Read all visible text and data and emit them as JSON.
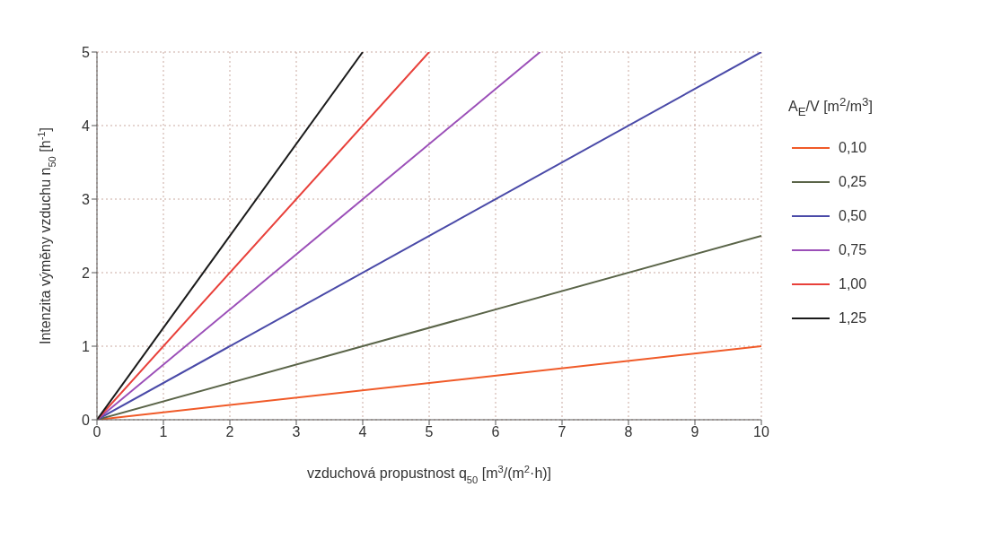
{
  "chart_data": {
    "type": "line",
    "xlabel": "vzduchová propustnost q$_{50}$ [m$^{3}$/(m$^{2}$·h)]",
    "ylabel": "Intenzita výměny vzduchu n$_{50}$ [h$^{-1}$]",
    "legend_title": "A$_{E}$/V [m$^{2}$/m$^{3}$]",
    "xlim": [
      0,
      10
    ],
    "xticks": [
      0,
      1,
      2,
      3,
      4,
      5,
      6,
      7,
      8,
      9,
      10
    ],
    "ylim": [
      0,
      5
    ],
    "yticks": [
      0,
      1,
      2,
      3,
      4,
      5
    ],
    "grid": true,
    "legend": "right",
    "marker": "none",
    "line_style": "solid",
    "series": [
      {
        "name": "0,10",
        "color": "#f05a28",
        "x": [
          0,
          10
        ],
        "values": [
          0,
          1
        ]
      },
      {
        "name": "0,25",
        "color": "#5a6448",
        "x": [
          0,
          10
        ],
        "values": [
          0,
          2.5
        ]
      },
      {
        "name": "0,50",
        "color": "#4a4aa8",
        "x": [
          0,
          10
        ],
        "values": [
          0,
          5
        ]
      },
      {
        "name": "0,75",
        "color": "#9b4fb8",
        "x": [
          0,
          6.67
        ],
        "values": [
          0,
          5
        ]
      },
      {
        "name": "1,00",
        "color": "#e8403a",
        "x": [
          0,
          5
        ],
        "values": [
          0,
          5
        ]
      },
      {
        "name": "1,25",
        "color": "#1a1a1a",
        "x": [
          0,
          4
        ],
        "values": [
          0,
          5
        ]
      }
    ]
  }
}
